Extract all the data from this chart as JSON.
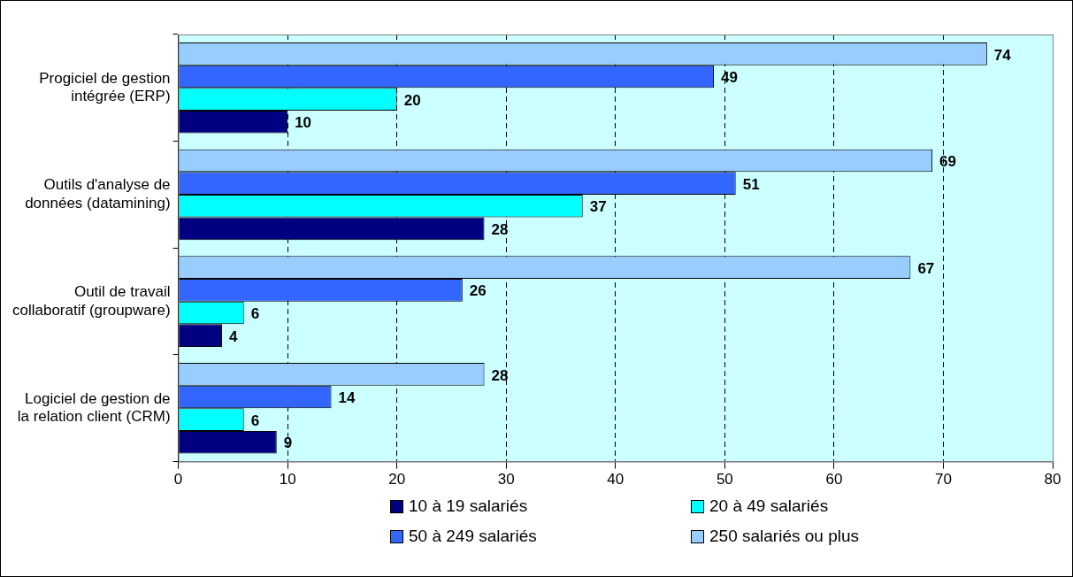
{
  "chart_data": {
    "type": "bar",
    "orientation": "horizontal",
    "categories": [
      "Progiciel de gestion intégrée (ERP)",
      "Outils d'analyse de données (datamining)",
      "Outil de travail collaboratif (groupware)",
      "Logiciel de gestion de la relation client (CRM)"
    ],
    "series": [
      {
        "name": "10 à 19 salariés",
        "color": "#000080",
        "values": [
          10,
          28,
          4,
          9
        ]
      },
      {
        "name": "20 à 49 salariés",
        "color": "#00ffff",
        "values": [
          20,
          37,
          6,
          6
        ]
      },
      {
        "name": "50 à 249 salariés",
        "color": "#3366ff",
        "values": [
          49,
          51,
          26,
          14
        ]
      },
      {
        "name": "250 salariés ou plus",
        "color": "#99ccff",
        "values": [
          74,
          69,
          67,
          28
        ]
      }
    ],
    "xlim": [
      0,
      80
    ],
    "xticks": [
      0,
      10,
      20,
      30,
      40,
      50,
      60,
      70,
      80
    ],
    "grid": "x",
    "legend": "bottom",
    "data_labels": true
  }
}
